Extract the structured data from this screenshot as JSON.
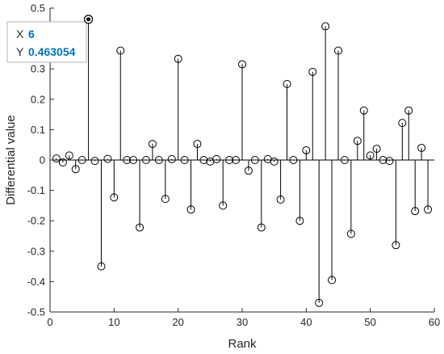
{
  "chart_data": {
    "type": "stem",
    "xlabel": "Rank",
    "ylabel": "Differential value",
    "xlim": [
      0,
      60
    ],
    "ylim": [
      -0.5,
      0.5
    ],
    "xticks": [
      0,
      10,
      20,
      30,
      40,
      50,
      60
    ],
    "yticks": [
      -0.5,
      -0.4,
      -0.3,
      -0.2,
      -0.1,
      0,
      0.1,
      0.2,
      0.3,
      0.4,
      0.5
    ],
    "grid": false,
    "marker": "open-circle",
    "x": [
      1,
      2,
      3,
      4,
      5,
      6,
      7,
      8,
      9,
      10,
      11,
      12,
      13,
      14,
      15,
      16,
      17,
      18,
      19,
      20,
      21,
      22,
      23,
      24,
      25,
      26,
      27,
      28,
      29,
      30,
      31,
      32,
      33,
      34,
      35,
      36,
      37,
      38,
      39,
      40,
      41,
      42,
      43,
      44,
      45,
      46,
      47,
      48,
      49,
      50,
      51,
      52,
      53,
      54,
      55,
      56,
      57,
      58,
      59
    ],
    "y": [
      0.005,
      -0.008,
      0.015,
      -0.03,
      0,
      0.463054,
      -0.003,
      -0.35,
      0.004,
      -0.123,
      0.36,
      0,
      0,
      -0.222,
      0,
      0.053,
      0,
      -0.128,
      0.003,
      0.333,
      0,
      -0.163,
      0.053,
      0,
      -0.005,
      0.003,
      -0.15,
      0,
      0,
      0.315,
      -0.035,
      0,
      -0.222,
      0.003,
      -0.005,
      -0.13,
      0.25,
      0,
      -0.2,
      0.032,
      0.29,
      -0.47,
      0.44,
      -0.395,
      0.36,
      0,
      -0.243,
      0.063,
      0.163,
      0.015,
      0.037,
      0,
      -0.003,
      -0.28,
      0.122,
      0.163,
      -0.168,
      0.04,
      -0.163
    ],
    "datatip": {
      "x_key": "X",
      "x_value": "6",
      "y_key": "Y",
      "y_value": "0.463054",
      "value_color": "#0072bd"
    }
  }
}
